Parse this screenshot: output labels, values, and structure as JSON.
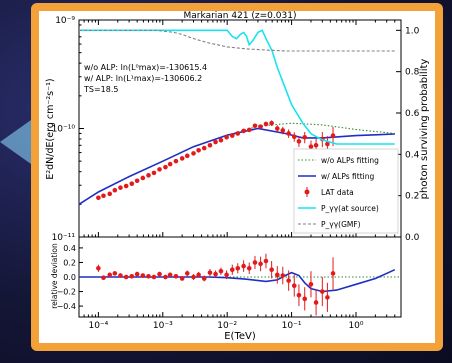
{
  "chart_data": [
    {
      "type": "scatter",
      "title": "Markarian 421 (z=0.031)",
      "ylabel": "E²dN/dE(erg cm⁻²s⁻¹)",
      "ylabel_right": "photon surviving probability",
      "xscale": "log",
      "yscale": "log",
      "xlim": [
        5e-05,
        5
      ],
      "ylim": [
        1e-11,
        1e-09
      ],
      "ylim_right": [
        0.0,
        1.05
      ],
      "y_ticks": [
        "10⁻⁹",
        "10⁻¹⁰",
        "10⁻¹¹"
      ],
      "y_ticks_right": [
        "1.0",
        "0.8",
        "0.6",
        "0.4",
        "0.2",
        "0.0"
      ],
      "annotations": [
        "w/o ALP: ln(L⁰max)=-130615.4",
        "w/ ALP: ln(L¹max)=-130606.2",
        "TS=18.5"
      ],
      "legend_position": "lower-right",
      "series": [
        {
          "name": "w/o ALPs fitting",
          "style": "dotted",
          "color": "#2e8b2e",
          "x": [
            5e-05,
            0.0001,
            0.0003,
            0.001,
            0.003,
            0.01,
            0.03,
            0.1,
            0.3,
            1,
            4
          ],
          "y": [
            2e-11,
            2.6e-11,
            3.6e-11,
            5e-11,
            6.8e-11,
            8.7e-11,
            1.05e-10,
            1.12e-10,
            1.08e-10,
            9.8e-11,
            9e-11
          ]
        },
        {
          "name": "w/ ALPs fitting",
          "style": "solid",
          "color": "#1f2fc4",
          "x": [
            5e-05,
            0.0001,
            0.0003,
            0.001,
            0.003,
            0.01,
            0.03,
            0.08,
            0.15,
            0.3,
            1,
            4
          ],
          "y": [
            2e-11,
            2.6e-11,
            3.6e-11,
            5e-11,
            6.8e-11,
            8.7e-11,
            1e-10,
            9e-11,
            8.2e-11,
            8.2e-11,
            8.6e-11,
            8.9e-11
          ]
        },
        {
          "name": "LAT data",
          "style": "points",
          "color": "#e31a1c",
          "x": [
            0.0001,
            0.00012,
            0.00015,
            0.00018,
            0.00022,
            0.00027,
            0.00033,
            0.0004,
            0.00049,
            0.0006,
            0.00073,
            0.00089,
            0.0011,
            0.0013,
            0.0016,
            0.002,
            0.0024,
            0.003,
            0.0036,
            0.0044,
            0.0054,
            0.0066,
            0.008,
            0.0098,
            0.012,
            0.0146,
            0.018,
            0.022,
            0.027,
            0.033,
            0.04,
            0.049,
            0.06,
            0.073,
            0.09,
            0.11,
            0.13,
            0.16,
            0.2,
            0.24,
            0.3,
            0.36,
            0.44
          ],
          "y": [
            2.3e-11,
            2.4e-11,
            2.5e-11,
            2.7e-11,
            2.85e-11,
            2.95e-11,
            3.1e-11,
            3.3e-11,
            3.5e-11,
            3.7e-11,
            3.9e-11,
            4.2e-11,
            4.4e-11,
            4.7e-11,
            5e-11,
            5.3e-11,
            5.6e-11,
            5.9e-11,
            6.3e-11,
            6.6e-11,
            7e-11,
            7.5e-11,
            7.8e-11,
            8.3e-11,
            8.6e-11,
            9e-11,
            9.5e-11,
            9.7e-11,
            1.06e-10,
            1.04e-10,
            1.1e-10,
            1.12e-10,
            1e-10,
            9.6e-11,
            9e-11,
            8.4e-11,
            7.6e-11,
            8.3e-11,
            6.8e-11,
            7e-11,
            8e-11,
            7.2e-11,
            8.6e-11
          ],
          "err": [
            0.02,
            0.02,
            0.02,
            0.02,
            0.02,
            0.02,
            0.02,
            0.02,
            0.02,
            0.02,
            0.02,
            0.02,
            0.02,
            0.02,
            0.02,
            0.02,
            0.02,
            0.02,
            0.02,
            0.02,
            0.02,
            0.02,
            0.02,
            0.025,
            0.03,
            0.03,
            0.03,
            0.035,
            0.04,
            0.045,
            0.05,
            0.06,
            0.07,
            0.08,
            0.09,
            0.1,
            0.11,
            0.12,
            0.14,
            0.15,
            0.16,
            0.18,
            0.2
          ]
        },
        {
          "name": "P_γγ(at source)",
          "axis": "right",
          "style": "solid",
          "color": "#19e3f0",
          "x": [
            5e-05,
            0.003,
            0.01,
            0.012,
            0.014,
            0.016,
            0.018,
            0.02,
            0.022,
            0.025,
            0.03,
            0.035,
            0.04,
            0.05,
            0.06,
            0.08,
            0.1,
            0.15,
            0.2,
            0.3,
            0.5,
            1,
            2,
            4
          ],
          "y": [
            1.0,
            1.0,
            1.0,
            0.97,
            0.96,
            0.98,
            0.99,
            0.97,
            0.93,
            0.95,
            0.99,
            1.0,
            0.96,
            0.9,
            0.82,
            0.72,
            0.64,
            0.55,
            0.5,
            0.47,
            0.45,
            0.45,
            0.45,
            0.45
          ]
        },
        {
          "name": "P_γγ(GMF)",
          "axis": "right",
          "style": "dashed",
          "color": "#808080",
          "x": [
            5e-05,
            0.0003,
            0.0008,
            0.0015,
            0.002,
            0.003,
            0.005,
            0.01,
            0.02,
            0.04,
            0.08,
            0.15,
            0.3,
            0.5,
            1,
            4
          ],
          "y": [
            1.0,
            1.0,
            1.0,
            0.99,
            0.98,
            0.96,
            0.94,
            0.92,
            0.91,
            0.905,
            0.9,
            0.9,
            0.9,
            0.9,
            0.9,
            0.9
          ]
        }
      ]
    },
    {
      "type": "scatter",
      "xlabel": "E(TeV)",
      "ylabel": "relative deviation",
      "xscale": "log",
      "xlim": [
        5e-05,
        5
      ],
      "ylim": [
        -0.55,
        0.55
      ],
      "y_ticks": [
        "0.4",
        "0.2",
        "0.0",
        "−0.2",
        "−0.4"
      ],
      "x_ticks": [
        "10⁻⁴",
        "10⁻³",
        "10⁻²",
        "10⁻¹",
        "10⁰"
      ],
      "series": [
        {
          "name": "zero line",
          "style": "dotted",
          "color": "#2e8b2e",
          "x": [
            5e-05,
            5
          ],
          "y": [
            0,
            0
          ]
        },
        {
          "name": "model difference",
          "style": "solid",
          "color": "#1f2fc4",
          "x": [
            5e-05,
            0.005,
            0.01,
            0.02,
            0.04,
            0.06,
            0.08,
            0.1,
            0.13,
            0.16,
            0.2,
            0.3,
            0.5,
            1,
            2,
            4
          ],
          "y": [
            0,
            0,
            -0.01,
            -0.03,
            -0.06,
            -0.04,
            0.02,
            0.06,
            0.02,
            -0.08,
            -0.16,
            -0.2,
            -0.18,
            -0.1,
            -0.02,
            0.1
          ]
        },
        {
          "name": "LAT residuals",
          "style": "points",
          "color": "#e31a1c",
          "x": [
            0.0001,
            0.00012,
            0.00015,
            0.00018,
            0.00022,
            0.00027,
            0.00033,
            0.0004,
            0.00049,
            0.0006,
            0.00073,
            0.00089,
            0.0011,
            0.0013,
            0.0016,
            0.002,
            0.0024,
            0.003,
            0.0036,
            0.0044,
            0.0054,
            0.0066,
            0.008,
            0.0098,
            0.012,
            0.0146,
            0.018,
            0.022,
            0.027,
            0.033,
            0.04,
            0.049,
            0.06,
            0.073,
            0.09,
            0.11,
            0.13,
            0.16,
            0.2,
            0.24,
            0.3,
            0.36,
            0.44
          ],
          "y": [
            0.12,
            -0.01,
            0.03,
            0.05,
            0.02,
            0.0,
            0.01,
            0.04,
            0.02,
            0.01,
            0.0,
            0.04,
            0.0,
            0.03,
            0.01,
            -0.02,
            0.05,
            0.0,
            0.03,
            -0.02,
            0.06,
            0.04,
            0.08,
            0.03,
            0.1,
            0.12,
            0.15,
            0.12,
            0.2,
            0.18,
            0.22,
            0.1,
            0.03,
            0.02,
            -0.05,
            -0.12,
            -0.25,
            -0.3,
            -0.1,
            -0.35,
            -0.2,
            -0.28,
            0.05
          ],
          "err": [
            0.05,
            0.03,
            0.03,
            0.03,
            0.03,
            0.03,
            0.03,
            0.03,
            0.03,
            0.03,
            0.03,
            0.03,
            0.03,
            0.03,
            0.03,
            0.03,
            0.04,
            0.04,
            0.04,
            0.04,
            0.05,
            0.05,
            0.05,
            0.06,
            0.07,
            0.07,
            0.08,
            0.08,
            0.09,
            0.1,
            0.1,
            0.12,
            0.12,
            0.12,
            0.14,
            0.15,
            0.15,
            0.16,
            0.18,
            0.18,
            0.2,
            0.2,
            0.22
          ]
        }
      ]
    }
  ]
}
